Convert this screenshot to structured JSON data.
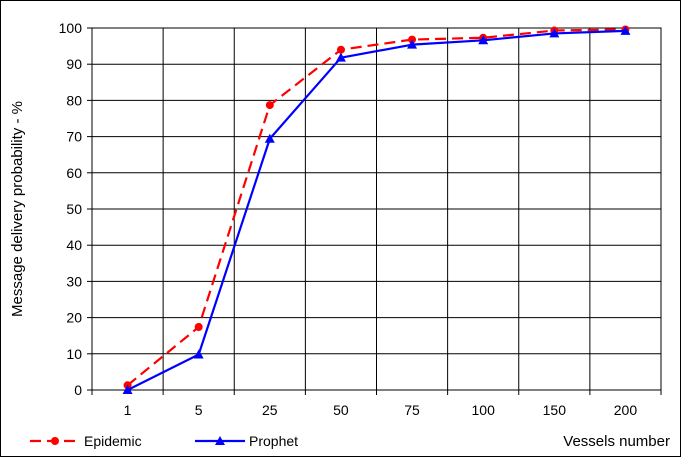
{
  "chart_data": {
    "type": "line",
    "title": "",
    "xlabel": "Vessels number",
    "ylabel": "Message delivery probability - %",
    "categories": [
      "1",
      "5",
      "25",
      "50",
      "75",
      "100",
      "150",
      "200"
    ],
    "ylim": [
      0,
      100
    ],
    "yticks": [
      "0",
      "10",
      "20",
      "30",
      "40",
      "50",
      "60",
      "70",
      "80",
      "90",
      "100"
    ],
    "grid": true,
    "legend_position": "bottom-left",
    "series": [
      {
        "name": "Epidemic",
        "values": [
          1.3,
          17.4,
          78.7,
          94.0,
          96.8,
          97.3,
          99.3,
          99.6
        ],
        "color": "#ff0000",
        "line_style": "dashed",
        "marker": "circle"
      },
      {
        "name": "Prophet",
        "values": [
          0.0,
          9.8,
          69.4,
          91.8,
          95.4,
          96.6,
          98.5,
          99.2
        ],
        "color": "#0000ff",
        "line_style": "solid",
        "marker": "triangle"
      }
    ]
  }
}
